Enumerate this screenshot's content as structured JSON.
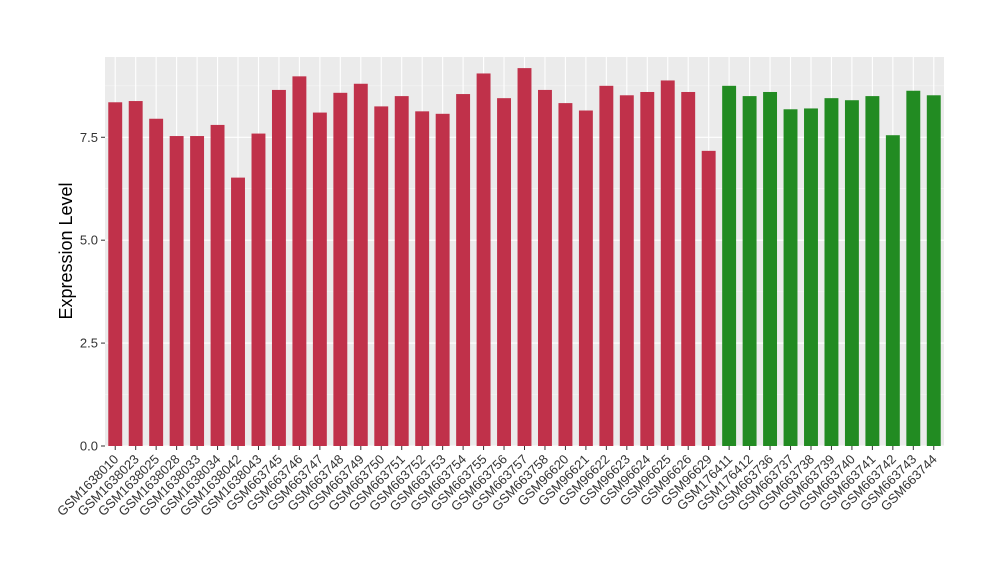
{
  "chart_data": {
    "type": "bar",
    "ylabel": "Expression Level",
    "xlabel": "",
    "ylim": [
      0,
      9.45
    ],
    "yticks": [
      "0.0",
      "2.5",
      "5.0",
      "7.5"
    ],
    "ytick_values": [
      0,
      2.5,
      5.0,
      7.5
    ],
    "grid": true,
    "panel_color": "#ebebeb",
    "categories": [
      "GSM1638010",
      "GSM1638023",
      "GSM1638025",
      "GSM1638028",
      "GSM1638033",
      "GSM1638034",
      "GSM1638042",
      "GSM1638043",
      "GSM663745",
      "GSM663746",
      "GSM663747",
      "GSM663748",
      "GSM663749",
      "GSM663750",
      "GSM663751",
      "GSM663752",
      "GSM663753",
      "GSM663754",
      "GSM663755",
      "GSM663756",
      "GSM663757",
      "GSM663758",
      "GSM96620",
      "GSM96621",
      "GSM96622",
      "GSM96623",
      "GSM96624",
      "GSM96625",
      "GSM96626",
      "GSM96629",
      "GSM176411",
      "GSM176412",
      "GSM663736",
      "GSM663737",
      "GSM663738",
      "GSM663739",
      "GSM663740",
      "GSM663741",
      "GSM663742",
      "GSM663743",
      "GSM663744"
    ],
    "values": [
      8.35,
      8.38,
      7.95,
      7.53,
      7.53,
      7.8,
      6.52,
      7.59,
      8.65,
      8.98,
      8.1,
      8.58,
      8.8,
      8.25,
      8.5,
      8.13,
      8.07,
      8.55,
      9.05,
      8.45,
      9.18,
      8.65,
      8.33,
      8.15,
      8.75,
      8.52,
      8.6,
      8.88,
      8.6,
      7.17,
      8.75,
      8.5,
      8.6,
      8.18,
      8.2,
      8.45,
      8.4,
      8.5,
      7.55,
      8.63,
      8.52
    ],
    "bar_colors": [
      "#c0314a",
      "#c0314a",
      "#c0314a",
      "#c0314a",
      "#c0314a",
      "#c0314a",
      "#c0314a",
      "#c0314a",
      "#c0314a",
      "#c0314a",
      "#c0314a",
      "#c0314a",
      "#c0314a",
      "#c0314a",
      "#c0314a",
      "#c0314a",
      "#c0314a",
      "#c0314a",
      "#c0314a",
      "#c0314a",
      "#c0314a",
      "#c0314a",
      "#c0314a",
      "#c0314a",
      "#c0314a",
      "#c0314a",
      "#c0314a",
      "#c0314a",
      "#c0314a",
      "#c0314a",
      "#228b22",
      "#228b22",
      "#228b22",
      "#228b22",
      "#228b22",
      "#228b22",
      "#228b22",
      "#228b22",
      "#228b22",
      "#228b22",
      "#228b22"
    ]
  }
}
